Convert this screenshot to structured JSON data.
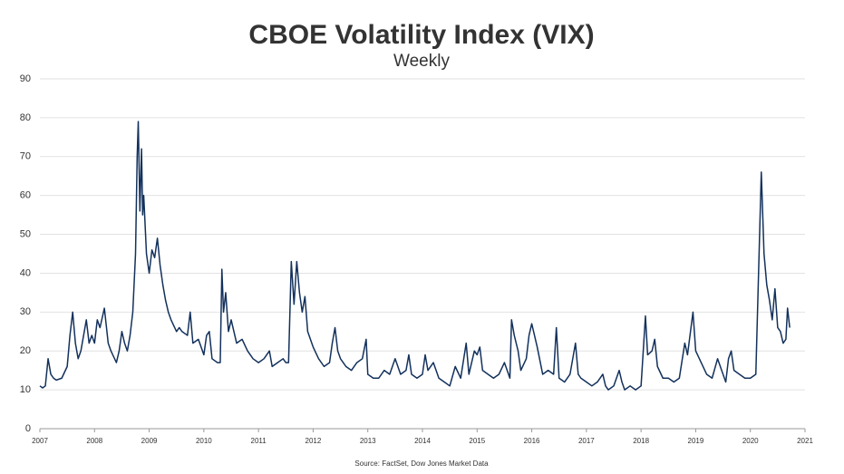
{
  "chart_data": {
    "type": "line",
    "title": "CBOE Volatility Index (VIX)",
    "subtitle": "Weekly",
    "source": "Source: FactSet, Dow Jones Market Data",
    "x": [
      2007.0,
      2007.05,
      2007.1,
      2007.15,
      2007.2,
      2007.25,
      2007.3,
      2007.4,
      2007.5,
      2007.55,
      2007.6,
      2007.65,
      2007.7,
      2007.75,
      2007.85,
      2007.9,
      2007.95,
      2008.0,
      2008.05,
      2008.1,
      2008.18,
      2008.25,
      2008.3,
      2008.4,
      2008.45,
      2008.5,
      2008.55,
      2008.6,
      2008.65,
      2008.7,
      2008.75,
      2008.78,
      2008.8,
      2008.83,
      2008.86,
      2008.88,
      2008.9,
      2008.95,
      2009.0,
      2009.05,
      2009.1,
      2009.15,
      2009.2,
      2009.25,
      2009.3,
      2009.35,
      2009.4,
      2009.5,
      2009.55,
      2009.6,
      2009.7,
      2009.75,
      2009.8,
      2009.9,
      2010.0,
      2010.05,
      2010.1,
      2010.15,
      2010.25,
      2010.3,
      2010.33,
      2010.36,
      2010.4,
      2010.45,
      2010.5,
      2010.6,
      2010.7,
      2010.8,
      2010.9,
      2011.0,
      2011.1,
      2011.2,
      2011.25,
      2011.35,
      2011.45,
      2011.5,
      2011.55,
      2011.6,
      2011.65,
      2011.7,
      2011.75,
      2011.8,
      2011.85,
      2011.9,
      2012.0,
      2012.1,
      2012.2,
      2012.3,
      2012.35,
      2012.4,
      2012.45,
      2012.5,
      2012.6,
      2012.7,
      2012.8,
      2012.9,
      2012.97,
      2013.0,
      2013.1,
      2013.2,
      2013.3,
      2013.4,
      2013.5,
      2013.6,
      2013.7,
      2013.75,
      2013.8,
      2013.9,
      2014.0,
      2014.05,
      2014.1,
      2014.2,
      2014.3,
      2014.4,
      2014.5,
      2014.6,
      2014.7,
      2014.8,
      2014.85,
      2014.95,
      2015.0,
      2015.05,
      2015.1,
      2015.2,
      2015.3,
      2015.4,
      2015.5,
      2015.6,
      2015.63,
      2015.68,
      2015.75,
      2015.8,
      2015.9,
      2015.95,
      2016.0,
      2016.05,
      2016.1,
      2016.2,
      2016.3,
      2016.4,
      2016.45,
      2016.5,
      2016.6,
      2016.7,
      2016.8,
      2016.85,
      2016.9,
      2017.0,
      2017.1,
      2017.2,
      2017.3,
      2017.35,
      2017.4,
      2017.5,
      2017.6,
      2017.65,
      2017.7,
      2017.8,
      2017.9,
      2018.0,
      2018.08,
      2018.12,
      2018.2,
      2018.25,
      2018.3,
      2018.4,
      2018.5,
      2018.6,
      2018.7,
      2018.8,
      2018.85,
      2018.95,
      2019.0,
      2019.1,
      2019.2,
      2019.3,
      2019.4,
      2019.5,
      2019.55,
      2019.6,
      2019.65,
      2019.7,
      2019.8,
      2019.9,
      2020.0,
      2020.1,
      2020.15,
      2020.2,
      2020.25,
      2020.3,
      2020.35,
      2020.4,
      2020.45,
      2020.5,
      2020.55,
      2020.6,
      2020.65,
      2020.68,
      2020.72
    ],
    "values": [
      11,
      10.5,
      11,
      18,
      14,
      13,
      12.5,
      13,
      16,
      24,
      30,
      22,
      18,
      20,
      28,
      22,
      24,
      22,
      28,
      26,
      31,
      22,
      20,
      17,
      20,
      25,
      22,
      20,
      24,
      30,
      45,
      70,
      79,
      56,
      72,
      55,
      60,
      45,
      40,
      46,
      44,
      49,
      42,
      37,
      33,
      30,
      28,
      25,
      26,
      25,
      24,
      30,
      22,
      23,
      19,
      24,
      25,
      18,
      17,
      17,
      41,
      30,
      35,
      25,
      28,
      22,
      23,
      20,
      18,
      17,
      18,
      20,
      16,
      17,
      18,
      17,
      17,
      43,
      32,
      43,
      35,
      30,
      34,
      25,
      21,
      18,
      16,
      17,
      22,
      26,
      20,
      18,
      16,
      15,
      17,
      18,
      23,
      14,
      13,
      13,
      15,
      14,
      18,
      14,
      15,
      19,
      14,
      13,
      14,
      19,
      15,
      17,
      13,
      12,
      11,
      16,
      13,
      22,
      14,
      20,
      19,
      21,
      15,
      14,
      13,
      14,
      17,
      13,
      28,
      24,
      20,
      15,
      18,
      24,
      27,
      24,
      21,
      14,
      15,
      14,
      26,
      13,
      12,
      14,
      22,
      14,
      13,
      12,
      11,
      12,
      14,
      11,
      10,
      11,
      15,
      12,
      10,
      11,
      10,
      11,
      29,
      19,
      20,
      23,
      16,
      13,
      13,
      12,
      13,
      22,
      19,
      30,
      20,
      17,
      14,
      13,
      18,
      14,
      12,
      18,
      20,
      15,
      14,
      13,
      13,
      14,
      40,
      66,
      45,
      37,
      33,
      28,
      36,
      26,
      25,
      22,
      23,
      31,
      26
    ],
    "color": "#13315c",
    "xlim": [
      2007,
      2021
    ],
    "xticks": [
      2007,
      2008,
      2009,
      2010,
      2011,
      2012,
      2013,
      2014,
      2015,
      2016,
      2017,
      2018,
      2019,
      2020,
      2021
    ],
    "ylim": [
      0,
      90
    ],
    "yticks": [
      0,
      10,
      20,
      30,
      40,
      50,
      60,
      70,
      80,
      90
    ],
    "grid": true
  }
}
